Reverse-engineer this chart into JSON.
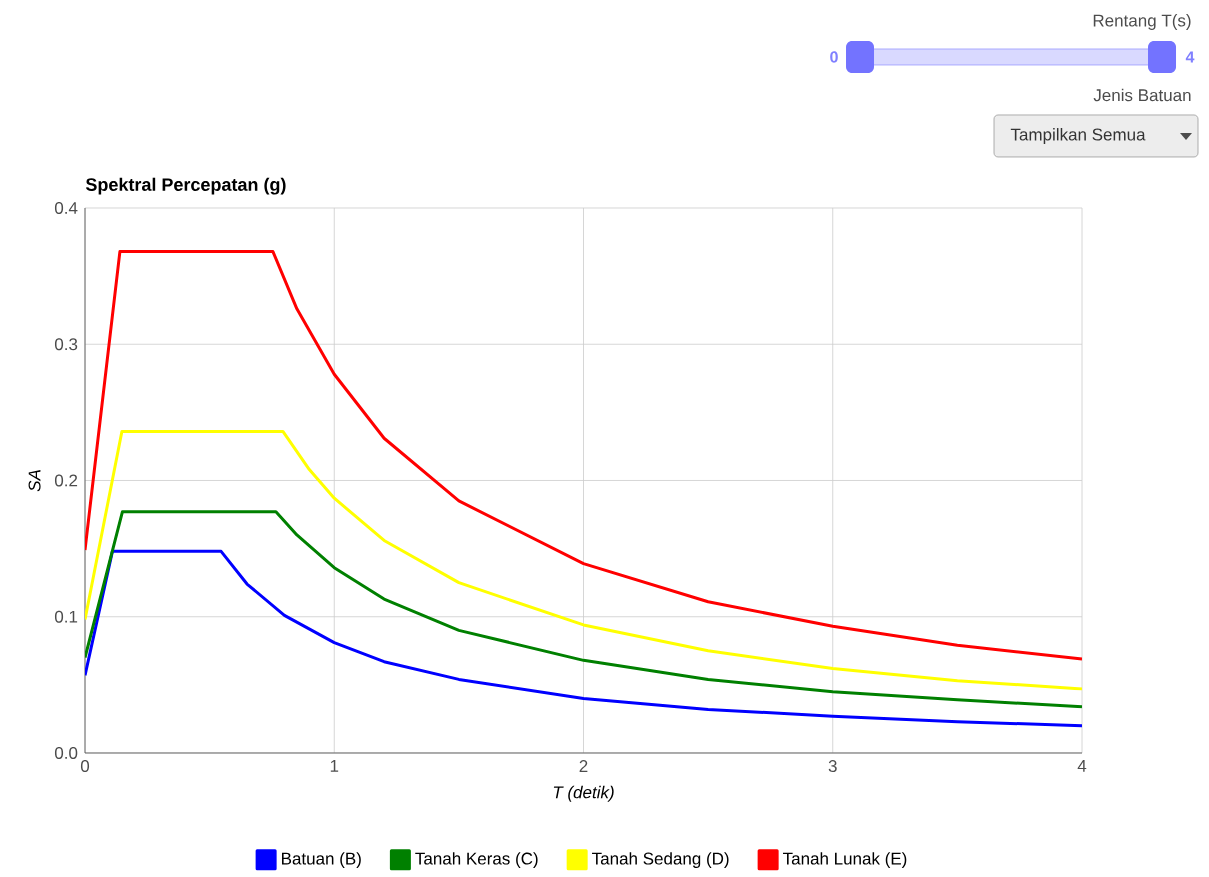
{
  "chart_data": {
    "type": "line",
    "title": "Spektral Percepatan (g)",
    "xlabel": "T (detik)",
    "ylabel": "SA",
    "annotations": [
      "Rentang T(s)",
      "0",
      "4",
      "Jenis Batuan",
      "Tampilkan Semua"
    ],
    "xlim": [
      0,
      4
    ],
    "ylim": [
      0,
      0.4
    ],
    "xticks": [
      0,
      1,
      2,
      3,
      4
    ],
    "yticks": [
      {
        "value": 0,
        "label": "0.0"
      },
      0.1,
      0.2,
      0.3,
      0.4
    ],
    "grid": true,
    "legend": "bottom",
    "marker": "none",
    "line_style": "solid",
    "series": [
      {
        "name": "Batuan (B)",
        "color": "#0000ff",
        "x": [
          0,
          0.11,
          0.546,
          0.65,
          0.8,
          1,
          1.2,
          1.5,
          2,
          2.5,
          3,
          3.5,
          4
        ],
        "values": [
          0.057,
          0.148,
          0.148,
          0.124,
          0.101,
          0.081,
          0.067,
          0.054,
          0.04,
          0.032,
          0.027,
          0.023,
          0.02
        ]
      },
      {
        "name": "Tanah Keras (C)",
        "color": "#008000",
        "x": [
          0,
          0.15,
          0.766,
          0.85,
          1,
          1.2,
          1.5,
          2,
          2.5,
          3,
          3.5,
          4
        ],
        "values": [
          0.07,
          0.177,
          0.177,
          0.16,
          0.136,
          0.113,
          0.09,
          0.068,
          0.054,
          0.045,
          0.039,
          0.034
        ]
      },
      {
        "name": "Tanah Sedang (D)",
        "color": "#ffff00",
        "x": [
          0,
          0.148,
          0.794,
          0.9,
          1,
          1.2,
          1.5,
          2,
          2.5,
          3,
          3.5,
          4
        ],
        "values": [
          0.098,
          0.236,
          0.236,
          0.208,
          0.187,
          0.156,
          0.125,
          0.094,
          0.075,
          0.062,
          0.053,
          0.047
        ]
      },
      {
        "name": "Tanah Lunak (E)",
        "color": "#ff0000",
        "x": [
          0,
          0.14,
          0.754,
          0.85,
          1,
          1.2,
          1.5,
          2,
          2.5,
          3,
          3.5,
          4
        ],
        "values": [
          0.149,
          0.368,
          0.368,
          0.326,
          0.278,
          0.231,
          0.185,
          0.139,
          0.111,
          0.093,
          0.079,
          0.069
        ]
      }
    ]
  }
}
